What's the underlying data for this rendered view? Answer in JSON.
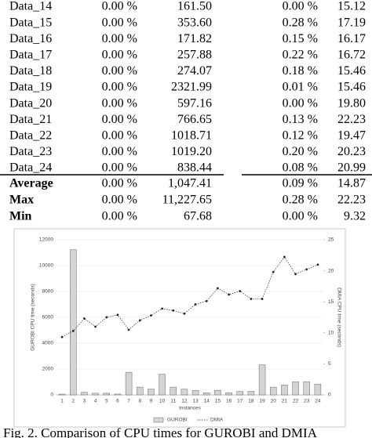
{
  "table": {
    "rows": [
      [
        "Data_14",
        "0.00 %",
        "161.50",
        "0.00 %",
        "15.12"
      ],
      [
        "Data_15",
        "0.00 %",
        "353.60",
        "0.28 %",
        "17.19"
      ],
      [
        "Data_16",
        "0.00 %",
        "171.82",
        "0.15 %",
        "16.17"
      ],
      [
        "Data_17",
        "0.00 %",
        "257.88",
        "0.22 %",
        "16.72"
      ],
      [
        "Data_18",
        "0.00 %",
        "274.07",
        "0.18 %",
        "15.46"
      ],
      [
        "Data_19",
        "0.00 %",
        "2321.99",
        "0.01 %",
        "15.46"
      ],
      [
        "Data_20",
        "0.00 %",
        "597.16",
        "0.00 %",
        "19.80"
      ],
      [
        "Data_21",
        "0.00 %",
        "766.65",
        "0.13 %",
        "22.23"
      ],
      [
        "Data_22",
        "0.00 %",
        "1018.71",
        "0.12 %",
        "19.47"
      ],
      [
        "Data_23",
        "0.00 %",
        "1019.20",
        "0.20 %",
        "20.23"
      ],
      [
        "Data_24",
        "0.00 %",
        "838.44",
        "0.08 %",
        "20.99"
      ]
    ],
    "summary": [
      [
        "Average",
        "0.00 %",
        "1,047.41",
        "0.09 %",
        "14.87"
      ],
      [
        "Max",
        "0.00 %",
        "11,227.65",
        "0.28 %",
        "22.23"
      ],
      [
        "Min",
        "0.00 %",
        "67.68",
        "0.00 %",
        "9.32"
      ]
    ]
  },
  "chart_data": {
    "type": "bar-line",
    "categories": [
      "1",
      "2",
      "3",
      "4",
      "5",
      "6",
      "7",
      "8",
      "9",
      "10",
      "11",
      "12",
      "13",
      "14",
      "15",
      "16",
      "17",
      "18",
      "19",
      "20",
      "21",
      "22",
      "23",
      "24"
    ],
    "x_label": "Instances",
    "y_label": "GUROBI CPU time (seconds)",
    "y2_label": "DMIA CPU time (seconds)",
    "series": [
      {
        "name": "GUROBI",
        "kind": "bar",
        "color": "#d4d4d4",
        "values": [
          60,
          11227.65,
          200,
          130,
          130,
          67.68,
          1750,
          600,
          450,
          1600,
          600,
          450,
          350,
          161.5,
          353.6,
          171.82,
          257.88,
          274.07,
          2321.99,
          597.16,
          766.65,
          1018.71,
          1019.2,
          838.44
        ]
      },
      {
        "name": "DMIA",
        "kind": "line",
        "axis": "y2",
        "color": "#222222",
        "values": [
          9.32,
          10.3,
          12.3,
          11,
          12.5,
          12.9,
          10.5,
          12,
          12.8,
          13.9,
          13.6,
          13.1,
          14.6,
          15.12,
          17.19,
          16.17,
          16.72,
          15.46,
          15.46,
          19.8,
          22.23,
          19.47,
          20.23,
          20.99
        ]
      }
    ],
    "ylim": [
      0,
      12000
    ],
    "yticks": [
      0,
      2000,
      4000,
      6000,
      8000,
      10000,
      12000
    ],
    "y2lim": [
      0,
      25
    ],
    "y2ticks": [
      0,
      5,
      10,
      15,
      20,
      25
    ],
    "grid": true
  },
  "caption": "Fig. 2. Comparison of CPU times for GUROBI and DMIA"
}
